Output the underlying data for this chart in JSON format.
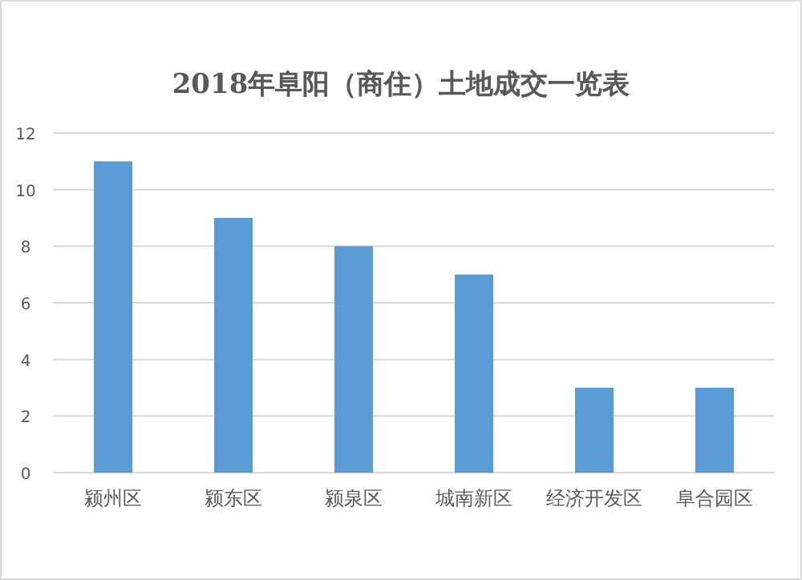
{
  "chart_data": {
    "type": "bar",
    "title": "2018年阜阳（商住）土地成交一览表",
    "categories": [
      "颍州区",
      "颍东区",
      "颍泉区",
      "城南新区",
      "经济开发区",
      "阜合园区"
    ],
    "values": [
      11,
      9,
      8,
      7,
      3,
      3
    ],
    "color": "#5b9bd5",
    "ylim": [
      0,
      12
    ],
    "yticks": [
      0,
      2,
      4,
      6,
      8,
      10,
      12
    ],
    "grid": "y"
  }
}
